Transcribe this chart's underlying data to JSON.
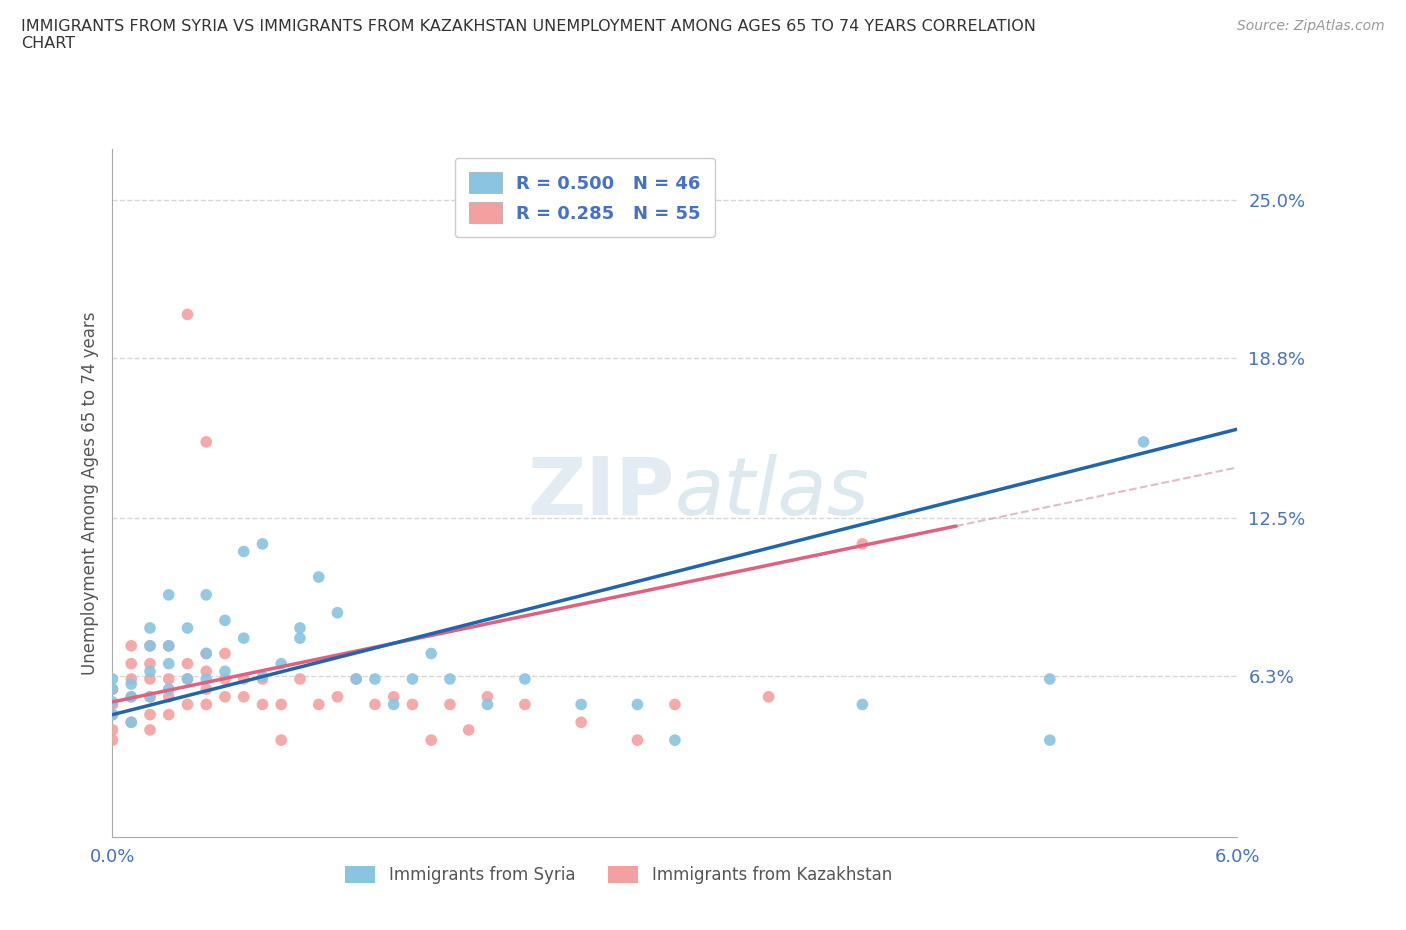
{
  "title": "IMMIGRANTS FROM SYRIA VS IMMIGRANTS FROM KAZAKHSTAN UNEMPLOYMENT AMONG AGES 65 TO 74 YEARS CORRELATION\nCHART",
  "source_text": "Source: ZipAtlas.com",
  "ylabel": "Unemployment Among Ages 65 to 74 years",
  "xmin": 0.0,
  "xmax": 0.06,
  "ymin": 0.0,
  "ymax": 0.27,
  "right_yticks": [
    0.063,
    0.125,
    0.188,
    0.25
  ],
  "right_yticklabels": [
    "6.3%",
    "12.5%",
    "18.8%",
    "25.0%"
  ],
  "syria_color": "#89c4e1",
  "syria_line_color": "#2166ac",
  "kazakhstan_color": "#f4a0a0",
  "kazakhstan_line_color": "#e06080",
  "kazakhstan_dash_color": "#d4a0b0",
  "legend_syria_R": "0.500",
  "legend_syria_N": "46",
  "legend_kazakhstan_R": "0.285",
  "legend_kazakhstan_N": "55",
  "watermark": "ZIPatlas",
  "grid_color": "#cccccc",
  "background_color": "#ffffff",
  "syria_scatter_x": [
    0.0,
    0.0,
    0.0,
    0.0,
    0.001,
    0.001,
    0.001,
    0.002,
    0.002,
    0.002,
    0.002,
    0.003,
    0.003,
    0.003,
    0.003,
    0.004,
    0.004,
    0.005,
    0.005,
    0.005,
    0.006,
    0.006,
    0.007,
    0.007,
    0.008,
    0.008,
    0.009,
    0.01,
    0.01,
    0.011,
    0.012,
    0.013,
    0.014,
    0.015,
    0.016,
    0.017,
    0.018,
    0.02,
    0.022,
    0.025,
    0.028,
    0.03,
    0.04,
    0.05,
    0.05,
    0.055
  ],
  "syria_scatter_y": [
    0.048,
    0.053,
    0.058,
    0.062,
    0.045,
    0.055,
    0.06,
    0.055,
    0.065,
    0.075,
    0.082,
    0.058,
    0.068,
    0.075,
    0.095,
    0.062,
    0.082,
    0.062,
    0.072,
    0.095,
    0.065,
    0.085,
    0.078,
    0.112,
    0.063,
    0.115,
    0.068,
    0.078,
    0.082,
    0.102,
    0.088,
    0.062,
    0.062,
    0.052,
    0.062,
    0.072,
    0.062,
    0.052,
    0.062,
    0.052,
    0.052,
    0.038,
    0.052,
    0.038,
    0.062,
    0.155
  ],
  "kazakhstan_scatter_x": [
    0.0,
    0.0,
    0.0,
    0.0,
    0.0,
    0.001,
    0.001,
    0.001,
    0.001,
    0.001,
    0.002,
    0.002,
    0.002,
    0.002,
    0.002,
    0.002,
    0.003,
    0.003,
    0.003,
    0.003,
    0.004,
    0.004,
    0.004,
    0.004,
    0.005,
    0.005,
    0.005,
    0.005,
    0.005,
    0.006,
    0.006,
    0.006,
    0.007,
    0.007,
    0.008,
    0.008,
    0.009,
    0.009,
    0.01,
    0.011,
    0.012,
    0.013,
    0.014,
    0.015,
    0.016,
    0.017,
    0.018,
    0.019,
    0.02,
    0.022,
    0.025,
    0.028,
    0.03,
    0.035,
    0.04
  ],
  "kazakhstan_scatter_y": [
    0.038,
    0.042,
    0.048,
    0.052,
    0.058,
    0.045,
    0.055,
    0.062,
    0.068,
    0.075,
    0.042,
    0.048,
    0.055,
    0.062,
    0.068,
    0.075,
    0.048,
    0.055,
    0.062,
    0.075,
    0.052,
    0.062,
    0.068,
    0.205,
    0.052,
    0.058,
    0.065,
    0.072,
    0.155,
    0.055,
    0.062,
    0.072,
    0.055,
    0.062,
    0.052,
    0.062,
    0.038,
    0.052,
    0.062,
    0.052,
    0.055,
    0.062,
    0.052,
    0.055,
    0.052,
    0.038,
    0.052,
    0.042,
    0.055,
    0.052,
    0.045,
    0.038,
    0.052,
    0.055,
    0.115
  ],
  "syria_trend_x0": 0.0,
  "syria_trend_y0": 0.048,
  "syria_trend_x1": 0.06,
  "syria_trend_y1": 0.16,
  "kaz_trend_x0": 0.0,
  "kaz_trend_y0": 0.053,
  "kaz_trend_x1": 0.045,
  "kaz_trend_y1": 0.122
}
